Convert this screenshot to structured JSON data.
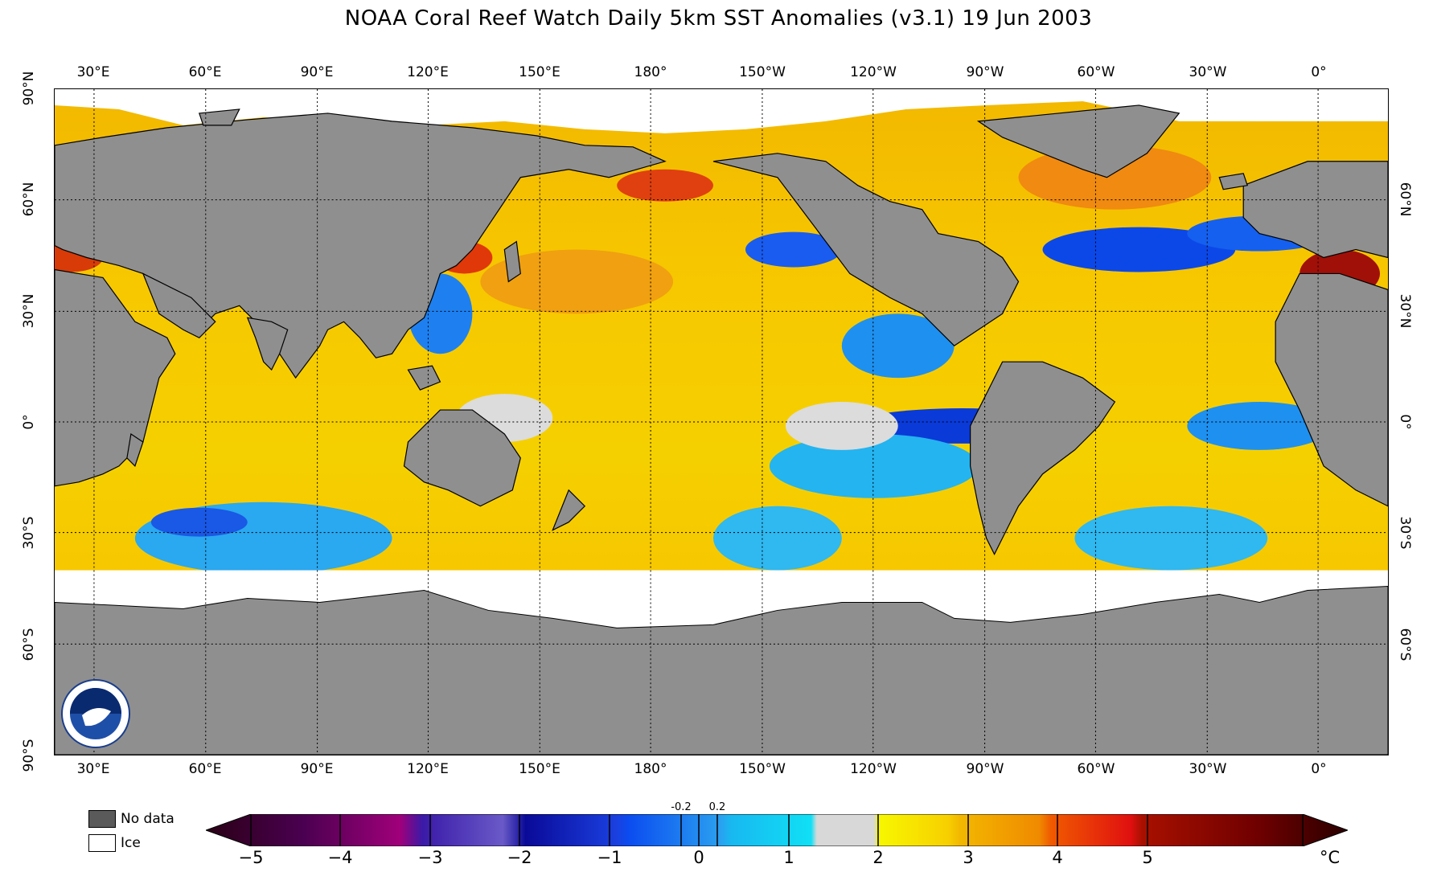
{
  "title": "NOAA Coral Reef Watch Daily 5km SST Anomalies  (v3.1)   19 Jun 2003",
  "lon_ticks": [
    "30°E",
    "60°E",
    "90°E",
    "120°E",
    "150°E",
    "180°",
    "150°W",
    "120°W",
    "90°W",
    "60°W",
    "30°W",
    "0°"
  ],
  "lat_ticks": [
    "90°N",
    "60°N",
    "30°N",
    "0°",
    "30°S",
    "60°S",
    "90°S"
  ],
  "legend": {
    "no_data": "No data",
    "ice": "Ice"
  },
  "colorbar": {
    "ticks": [
      "−5",
      "−4",
      "−3",
      "−2",
      "−1",
      "0",
      "1",
      "2",
      "3",
      "4",
      "5"
    ],
    "small_ticks": [
      "-0.2",
      "0.2"
    ],
    "unit": "°C",
    "range": [
      -5,
      5
    ]
  },
  "colors": {
    "land": "#8f8f8f",
    "ice": "#ffffff",
    "warm": "#f7c600",
    "cool": "#20b8f0",
    "neutral": "#d9d9d9"
  },
  "icons": {
    "logo": "noaa-logo"
  }
}
